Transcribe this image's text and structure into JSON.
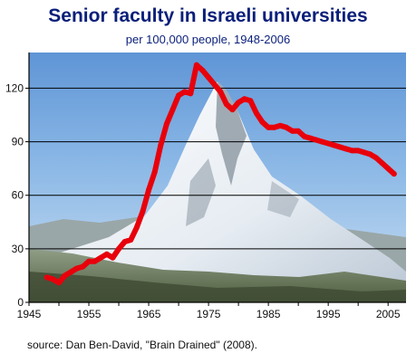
{
  "title": "Senior faculty in Israeli universities",
  "subtitle": "per 100,000 people, 1948-2006",
  "source": "source: Dan Ben-David, \"Brain Drained\" (2008).",
  "chart_data": {
    "type": "line",
    "title": "Senior faculty in Israeli universities",
    "subtitle": "per 100,000 people, 1948-2006",
    "xlabel": "",
    "ylabel": "",
    "xlim": [
      1945,
      2008
    ],
    "ylim": [
      0,
      140
    ],
    "xticks": [
      1945,
      1955,
      1965,
      1975,
      1985,
      1995,
      2005
    ],
    "yticks": [
      0,
      30,
      60,
      90,
      120
    ],
    "grid": "horizontal",
    "line_color": "#e8000b",
    "series": [
      {
        "name": "",
        "x": [
          1948,
          1949,
          1950,
          1951,
          1952,
          1953,
          1954,
          1955,
          1956,
          1957,
          1958,
          1959,
          1960,
          1961,
          1962,
          1963,
          1964,
          1965,
          1966,
          1967,
          1968,
          1969,
          1970,
          1971,
          1972,
          1973,
          1974,
          1975,
          1976,
          1977,
          1978,
          1979,
          1980,
          1981,
          1982,
          1983,
          1984,
          1985,
          1986,
          1987,
          1988,
          1989,
          1990,
          1991,
          1992,
          1993,
          1994,
          1995,
          1996,
          1997,
          1998,
          1999,
          2000,
          2001,
          2002,
          2003,
          2004,
          2005,
          2006
        ],
        "y": [
          14,
          13,
          11,
          15,
          17,
          19,
          20,
          23,
          23,
          25,
          27,
          25,
          30,
          34,
          35,
          42,
          51,
          63,
          73,
          88,
          100,
          108,
          116,
          118,
          117,
          133,
          130,
          126,
          122,
          118,
          111,
          108,
          112,
          114,
          113,
          106,
          101,
          98,
          98,
          99,
          98,
          96,
          96,
          93,
          92,
          91,
          90,
          89,
          88,
          87,
          86,
          85,
          85,
          84,
          83,
          81,
          78,
          75,
          72
        ]
      }
    ]
  }
}
